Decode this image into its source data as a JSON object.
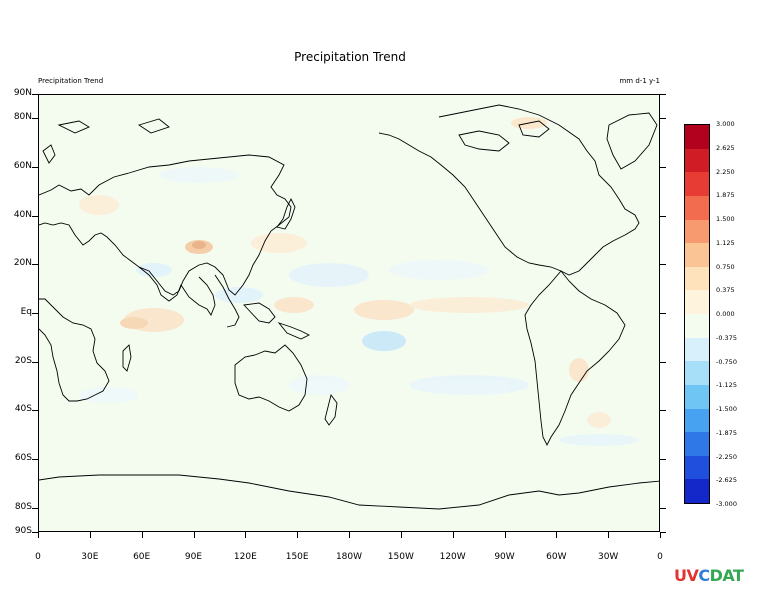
{
  "title": "Precipitation Trend",
  "subtitle_left": "Precipitation Trend",
  "units": "mm d-1 y-1",
  "lat_labels": [
    "90N",
    "80N",
    "60N",
    "40N",
    "20N",
    "Eq",
    "20S",
    "40S",
    "60S",
    "80S",
    "90S"
  ],
  "lat_values": [
    90,
    80,
    60,
    40,
    20,
    0,
    -20,
    -40,
    -60,
    -80,
    -90
  ],
  "lon_labels": [
    "0",
    "30E",
    "60E",
    "90E",
    "120E",
    "150E",
    "180W",
    "150W",
    "120W",
    "90W",
    "60W",
    "30W",
    "0"
  ],
  "colorbar": {
    "labels": [
      "3.000",
      "2.625",
      "2.250",
      "1.875",
      "1.500",
      "1.125",
      "0.750",
      "0.375",
      "0.000",
      "-0.375",
      "-0.750",
      "-1.125",
      "-1.500",
      "-1.875",
      "-2.250",
      "-2.625",
      "-3.000"
    ],
    "colors": [
      "#b2001f",
      "#d01c24",
      "#e63c34",
      "#f26c4f",
      "#f89a70",
      "#fbc495",
      "#fde2bc",
      "#fef3dc",
      "#f4fcf0",
      "#d8f0fb",
      "#a6dff7",
      "#6fc6f4",
      "#47a3f2",
      "#2f78e8",
      "#1f4fdc",
      "#1427c8",
      "#0a08b0"
    ]
  },
  "logo": {
    "part1": "UV",
    "part2": "C",
    "part3": "DAT"
  }
}
